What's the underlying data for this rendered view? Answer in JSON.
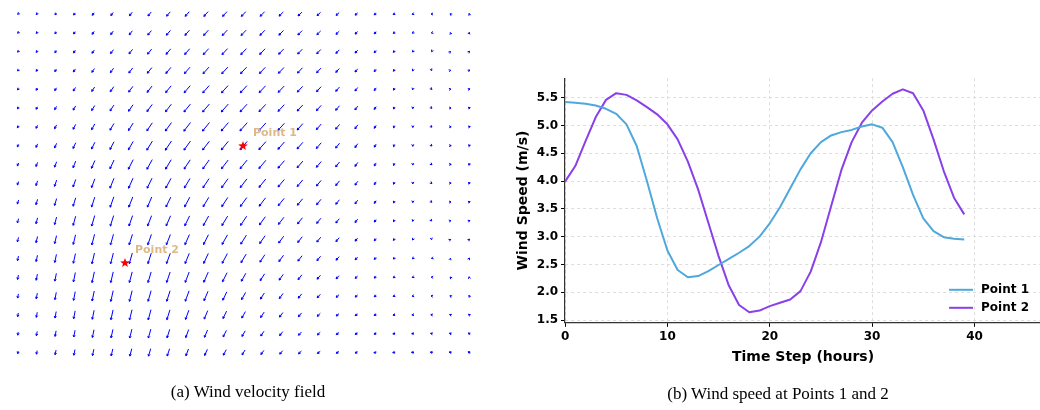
{
  "chart_data": [
    {
      "type": "other",
      "title": "(a) Wind velocity field",
      "annotations": [
        "Point 1",
        "Point 2"
      ]
    },
    {
      "type": "line",
      "title": "(b) Wind speed at Points 1 and 2",
      "xlabel": "Time Step (hours)",
      "ylabel": "Wind Speed (m/s)",
      "x": [
        0,
        1,
        2,
        3,
        4,
        5,
        6,
        7,
        8,
        9,
        10,
        11,
        12,
        13,
        14,
        15,
        16,
        17,
        18,
        19,
        20,
        21,
        22,
        23,
        24,
        25,
        26,
        27,
        28,
        29,
        30,
        31,
        32,
        33,
        34,
        35,
        36,
        37,
        38,
        39
      ],
      "series": [
        {
          "name": "Point 1",
          "color": "#4fa8dc",
          "values": [
            5.42,
            5.41,
            5.39,
            5.36,
            5.3,
            5.21,
            5.02,
            4.63,
            4.0,
            3.33,
            2.75,
            2.4,
            2.27,
            2.29,
            2.38,
            2.49,
            2.6,
            2.71,
            2.83,
            3.0,
            3.24,
            3.53,
            3.87,
            4.21,
            4.5,
            4.7,
            4.82,
            4.88,
            4.92,
            4.98,
            5.02,
            4.96,
            4.7,
            4.25,
            3.75,
            3.33,
            3.1,
            2.99,
            2.96,
            2.95
          ]
        },
        {
          "name": "Point 2",
          "color": "#8a40e8",
          "values": [
            3.99,
            4.27,
            4.72,
            5.15,
            5.46,
            5.58,
            5.55,
            5.45,
            5.33,
            5.2,
            5.02,
            4.75,
            4.35,
            3.85,
            3.25,
            2.65,
            2.12,
            1.77,
            1.64,
            1.67,
            1.75,
            1.81,
            1.87,
            2.02,
            2.37,
            2.9,
            3.55,
            4.2,
            4.7,
            5.05,
            5.27,
            5.43,
            5.57,
            5.65,
            5.58,
            5.27,
            4.75,
            4.18,
            3.7,
            3.4
          ]
        }
      ],
      "xlim": [
        0,
        46.5
      ],
      "ylim": [
        1.45,
        5.85
      ],
      "xticks": [
        0,
        10,
        20,
        30,
        40
      ],
      "yticks": [
        1.5,
        {
          "value": 2,
          "label": "2.0"
        },
        2.5,
        {
          "value": 3,
          "label": "3.0"
        },
        3.5,
        {
          "value": 4,
          "label": "4.0"
        },
        4.5,
        {
          "value": 5,
          "label": "5.0"
        },
        5.5
      ],
      "grid": true,
      "legend": "bottom right",
      "line_style": "solid",
      "marker": "none"
    }
  ]
}
